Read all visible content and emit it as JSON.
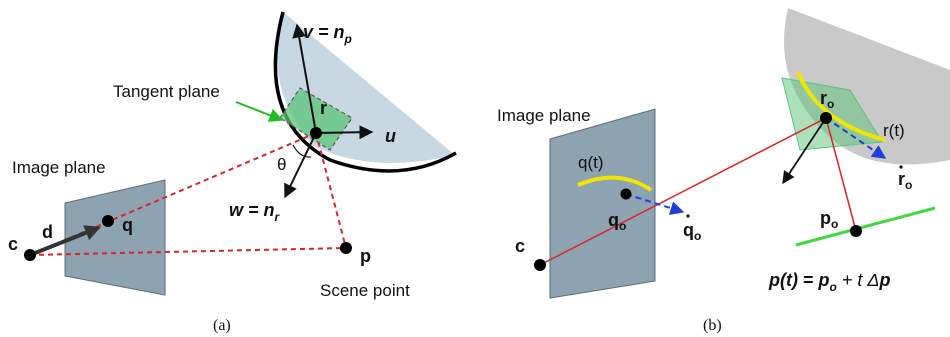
{
  "panel_a": {
    "caption": "(a)",
    "tangent_plane_label": "Tangent plane",
    "image_plane_label": "Image plane",
    "scene_point_label": "Scene point",
    "c": "c",
    "d": "d",
    "q": "q",
    "p": "p",
    "r": "r",
    "u": "u",
    "theta": "θ",
    "v_base": "v = n",
    "v_sub": "p",
    "w_base": "w = n",
    "w_sub": "r"
  },
  "panel_b": {
    "caption": "(b)",
    "image_plane_label": "Image plane",
    "c": "c",
    "q_t": "q(t)",
    "q_base": "q",
    "q_sub": "o",
    "r_base": "r",
    "r_sub": "o",
    "r_t": "r(t)",
    "p_base": "p",
    "p_sub": "o",
    "eq_p": "p",
    "eq_t": "(t)",
    "eq_eq": " = ",
    "eq_po": "p",
    "eq_po_sub": "o",
    "eq_plus": " + t Δ",
    "eq_dp": "p"
  },
  "colors": {
    "surface": "#c7d8e3",
    "surface_b": "#c9c9c9",
    "image_plane": "#8ea3b1",
    "tangent_green": "#5cc47a",
    "ray_red": "#d9232b",
    "arrow_blue": "#1d3fd6",
    "curve_yellow": "#f2e600",
    "line_green": "#3fd93f",
    "pointer_green": "#22bb22"
  }
}
